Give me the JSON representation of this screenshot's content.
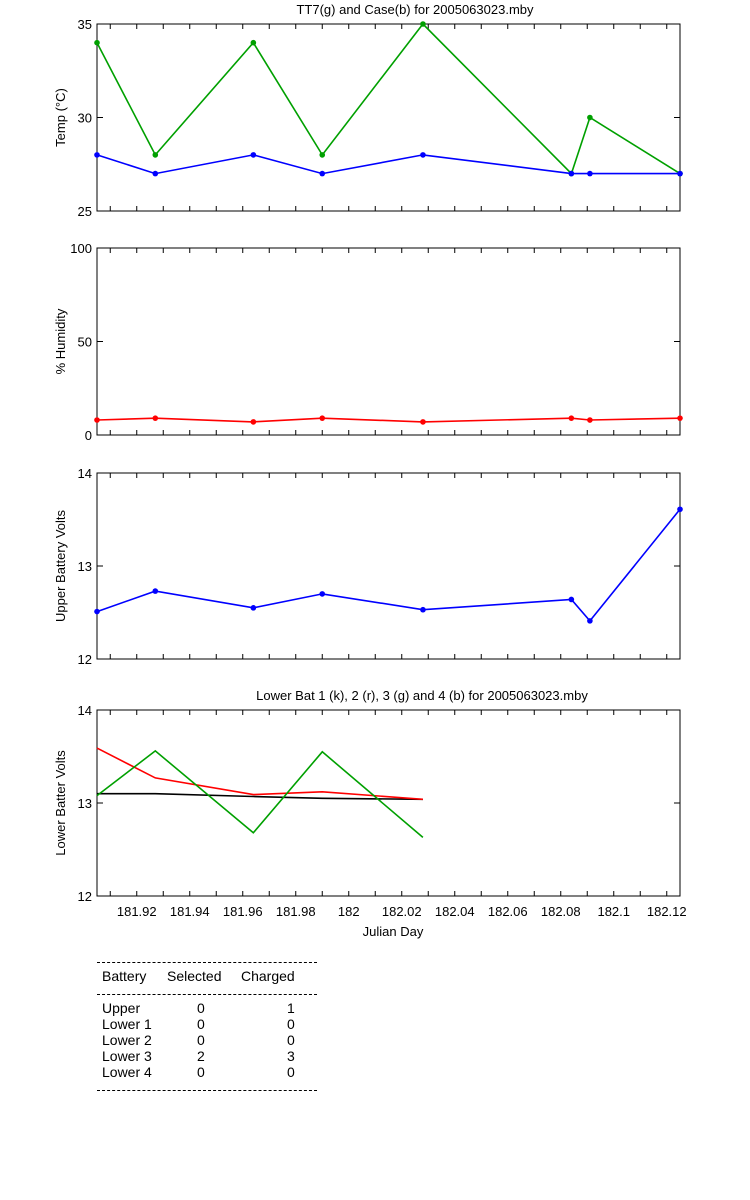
{
  "chart_data": [
    {
      "type": "line",
      "title": "TT7(g) and Case(b) for 2005063023.mby",
      "ylabel": "Temp  (°C)",
      "ylim": [
        25,
        35
      ],
      "yticks": [
        "25",
        "30",
        "35"
      ],
      "xlim": [
        181.905,
        182.125
      ],
      "series": [
        {
          "color": "#00a000",
          "x": [
            181.905,
            181.927,
            181.964,
            181.99,
            182.028,
            182.084,
            182.091,
            182.125
          ],
          "values": [
            34,
            28,
            34,
            28,
            35,
            27,
            30,
            27
          ]
        },
        {
          "color": "#0000ff",
          "x": [
            181.905,
            181.927,
            181.964,
            181.99,
            182.028,
            182.084,
            182.091,
            182.125
          ],
          "values": [
            28,
            27,
            28,
            27,
            28,
            27,
            27,
            27
          ]
        }
      ]
    },
    {
      "type": "line",
      "title": "",
      "ylabel": "% Humidity",
      "ylim": [
        0,
        100
      ],
      "yticks": [
        "0",
        "50",
        "100"
      ],
      "xlim": [
        181.905,
        182.125
      ],
      "series": [
        {
          "color": "#ff0000",
          "x": [
            181.905,
            181.927,
            181.964,
            181.99,
            182.028,
            182.084,
            182.091,
            182.125
          ],
          "values": [
            8,
            9,
            7,
            9,
            7,
            9,
            8,
            9
          ]
        }
      ]
    },
    {
      "type": "line",
      "title": "",
      "ylabel": "Upper Battery Volts",
      "ylim": [
        12,
        14
      ],
      "yticks": [
        "12",
        "13",
        "14"
      ],
      "xlim": [
        181.905,
        182.125
      ],
      "series": [
        {
          "color": "#0000ff",
          "x": [
            181.905,
            181.927,
            181.964,
            181.99,
            182.028,
            182.084,
            182.091,
            182.125
          ],
          "values": [
            12.51,
            12.73,
            12.55,
            12.7,
            12.53,
            12.64,
            12.41,
            13.61
          ]
        }
      ]
    },
    {
      "type": "line",
      "title": "Lower Bat 1 (k), 2 (r), 3 (g) and 4 (b) for 2005063023.mby",
      "ylabel": "Lower Batter Volts",
      "xlabel": "Julian Day",
      "ylim": [
        12,
        14
      ],
      "yticks": [
        "12",
        "13",
        "14"
      ],
      "xlim": [
        181.905,
        182.125
      ],
      "xticks": [
        "181.92",
        "181.94",
        "181.96",
        "181.98",
        "182",
        "182.02",
        "182.04",
        "182.06",
        "182.08",
        "182.1",
        "182.12"
      ],
      "series": [
        {
          "color": "#000000",
          "x": [
            181.905,
            181.927,
            181.964,
            181.99,
            182.028
          ],
          "values": [
            13.1,
            13.1,
            13.07,
            13.05,
            13.04
          ]
        },
        {
          "color": "#ff0000",
          "x": [
            181.905,
            181.927,
            181.964,
            181.99,
            182.028
          ],
          "values": [
            13.59,
            13.27,
            13.09,
            13.12,
            13.04
          ]
        },
        {
          "color": "#00a000",
          "x": [
            181.905,
            181.927,
            181.964,
            181.99,
            182.028
          ],
          "values": [
            13.08,
            13.56,
            12.68,
            13.55,
            12.63
          ]
        }
      ]
    }
  ],
  "battery_table": {
    "headers": [
      "Battery",
      "Selected",
      "Charged"
    ],
    "rows": [
      [
        "Upper",
        "0",
        "1"
      ],
      [
        "Lower 1",
        "0",
        "0"
      ],
      [
        "Lower 2",
        "0",
        "0"
      ],
      [
        "Lower 3",
        "2",
        "3"
      ],
      [
        "Lower 4",
        "0",
        "0"
      ]
    ]
  }
}
